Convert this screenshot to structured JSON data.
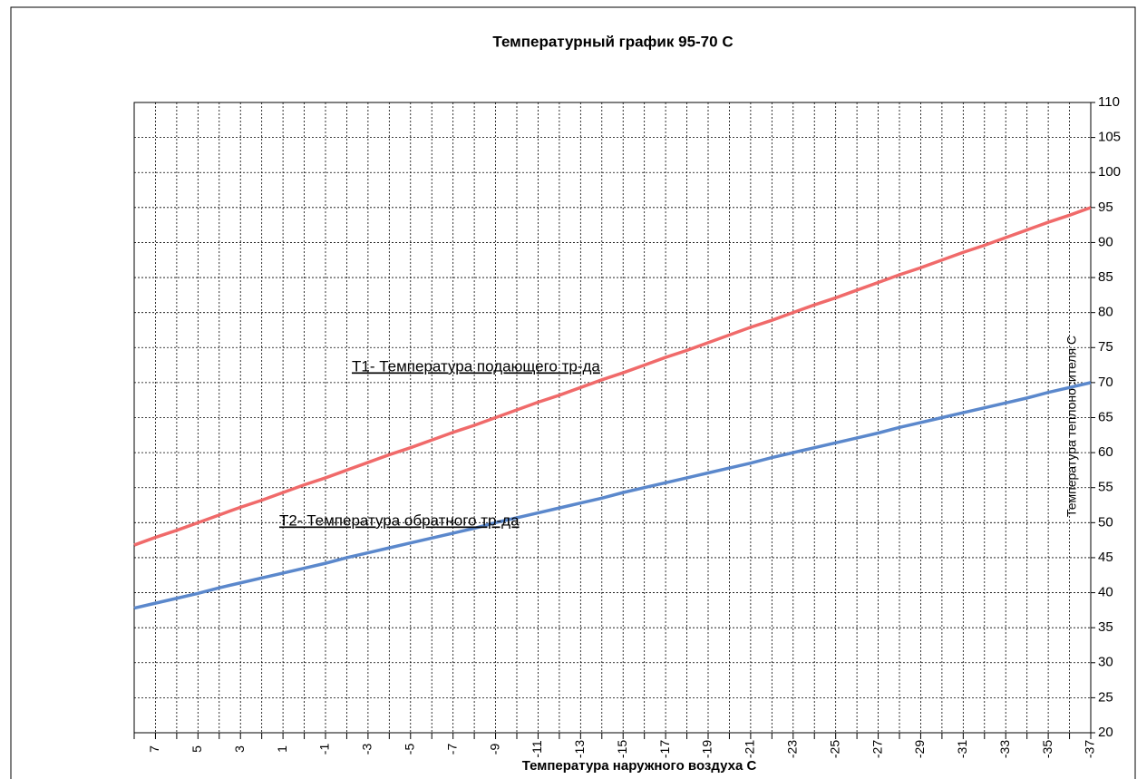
{
  "chart_data": {
    "type": "line",
    "title": "Температурный график  95-70  С",
    "x_label": "Температура наружного воздуха С",
    "y_label": "Температура теплоносителя С",
    "annotations": [
      "Т1-  Температура подающего тр-да",
      "Т2-  Температура обратного тр-да"
    ],
    "categories": [
      null,
      "7",
      null,
      "5",
      null,
      "3",
      null,
      "1",
      null,
      "-1",
      null,
      "-3",
      null,
      "-5",
      null,
      "-7",
      null,
      "-9",
      null,
      "-11",
      null,
      "-13",
      null,
      "-15",
      null,
      "-17",
      null,
      "-19",
      null,
      "-21",
      null,
      "-23",
      null,
      "-25",
      null,
      "-27",
      null,
      "-29",
      null,
      "-31",
      null,
      "-33",
      null,
      "-35",
      null,
      "-37"
    ],
    "series": [
      {
        "color": "#f06a6a",
        "values": [
          46.8,
          47.9,
          48.9,
          50.0,
          51.1,
          52.2,
          53.2,
          54.3,
          55.4,
          56.4,
          57.5,
          58.6,
          59.7,
          60.7,
          61.8,
          62.9,
          63.9,
          65.0,
          66.1,
          67.2,
          68.2,
          69.3,
          70.4,
          71.4,
          72.5,
          73.6,
          74.6,
          75.7,
          76.8,
          77.9,
          78.9,
          80.0,
          81.1,
          82.1,
          83.2,
          84.3,
          85.4,
          86.4,
          87.5,
          88.6,
          89.6,
          90.7,
          91.8,
          92.9,
          93.9,
          95.0
        ]
      },
      {
        "color": "#5b88cc",
        "values": [
          37.8,
          38.5,
          39.2,
          39.9,
          40.7,
          41.4,
          42.1,
          42.8,
          43.5,
          44.2,
          45.0,
          45.7,
          46.4,
          47.1,
          47.8,
          48.5,
          49.2,
          50.0,
          50.7,
          51.4,
          52.1,
          52.8,
          53.5,
          54.3,
          55.0,
          55.7,
          56.4,
          57.1,
          57.8,
          58.5,
          59.3,
          60.0,
          60.7,
          61.4,
          62.1,
          62.8,
          63.6,
          64.3,
          65.0,
          65.7,
          66.4,
          67.1,
          67.8,
          68.6,
          69.3,
          70.0
        ]
      }
    ],
    "ylim": [
      20,
      110
    ],
    "yticks": [
      20,
      25,
      30,
      35,
      40,
      45,
      50,
      55,
      60,
      65,
      70,
      75,
      80,
      85,
      90,
      95,
      100,
      105,
      110
    ],
    "grid": true,
    "y_axis_side": "right"
  }
}
